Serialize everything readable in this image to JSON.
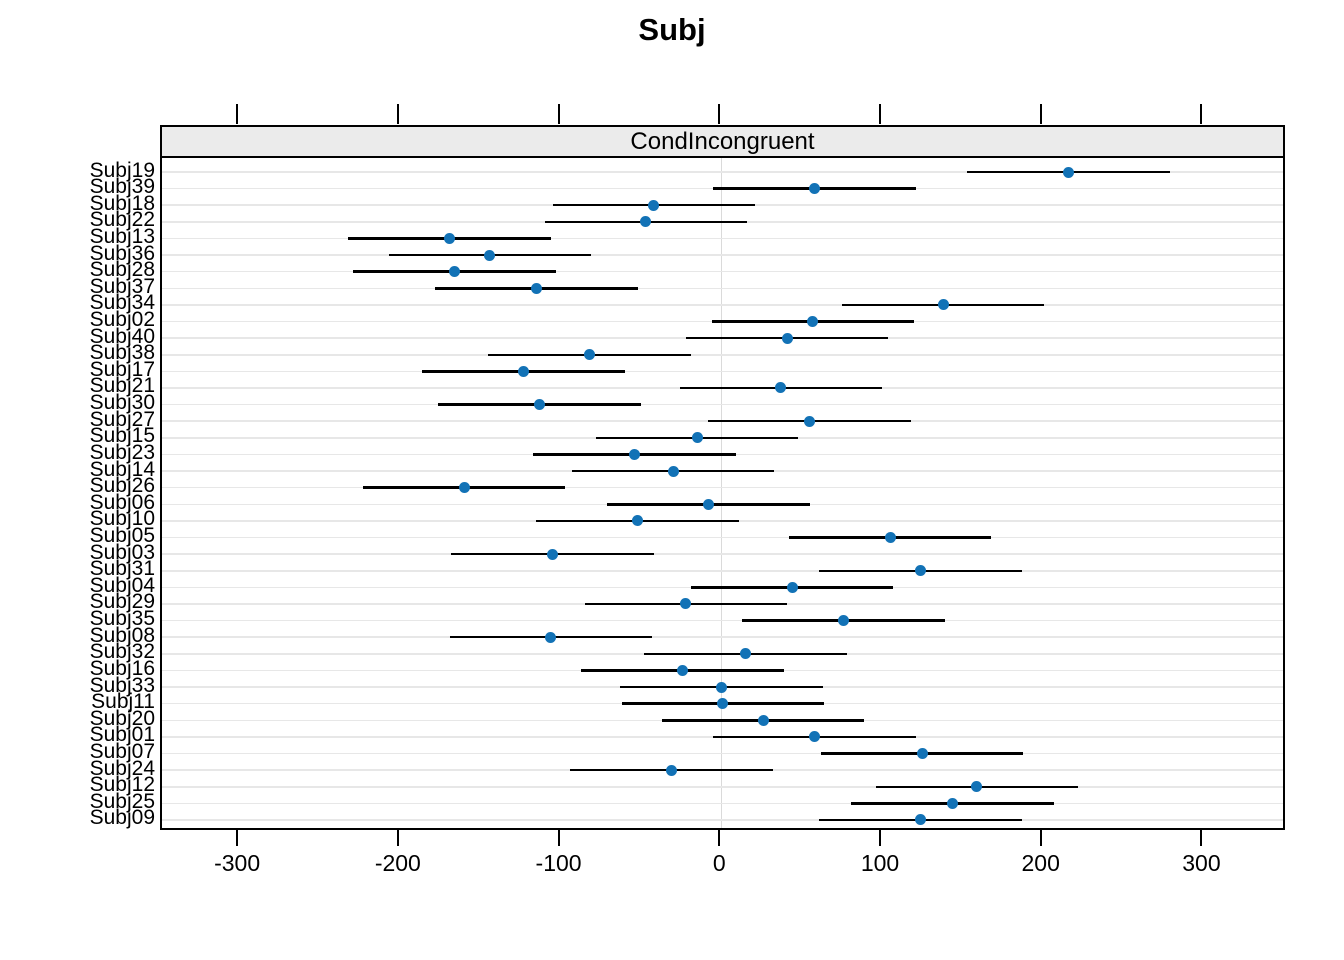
{
  "title": "Subj",
  "panel": {
    "strip_label": "CondIncongruent"
  },
  "colors": {
    "point": "#1272b6",
    "interval_line": "#000000",
    "strip_background": "#ebebeb",
    "horizontal_gridline": "#e7e7e7",
    "zero_gridline": "#dadada",
    "panel_border": "#000000"
  },
  "chart_data": {
    "type": "scatter",
    "subtype": "dotplot-with-intervals (caterpillar plot of conditional modes)",
    "title": "Subj",
    "panel_label": "CondIncongruent",
    "xlabel": "",
    "ylabel": "",
    "xlim": [
      -348,
      352
    ],
    "x_ticks": [
      -300,
      -200,
      -100,
      0,
      100,
      200,
      300
    ],
    "grid": {
      "horizontal_per_row": true,
      "vertical_at_zero": true
    },
    "legend_position": "none",
    "rows": [
      {
        "label": "Subj19",
        "est": 216,
        "lo": 153,
        "hi": 279
      },
      {
        "label": "Subj39",
        "est": 58,
        "lo": -5,
        "hi": 121
      },
      {
        "label": "Subj18",
        "est": -42,
        "lo": -105,
        "hi": 21
      },
      {
        "label": "Subj22",
        "est": -47,
        "lo": -110,
        "hi": 16
      },
      {
        "label": "Subj13",
        "est": -169,
        "lo": -232,
        "hi": -106
      },
      {
        "label": "Subj36",
        "est": -144,
        "lo": -207,
        "hi": -81
      },
      {
        "label": "Subj28",
        "est": -166,
        "lo": -229,
        "hi": -103
      },
      {
        "label": "Subj37",
        "est": -115,
        "lo": -178,
        "hi": -52
      },
      {
        "label": "Subj34",
        "est": 138,
        "lo": 75,
        "hi": 201
      },
      {
        "label": "Subj02",
        "est": 57,
        "lo": -6,
        "hi": 120
      },
      {
        "label": "Subj40",
        "est": 41,
        "lo": -22,
        "hi": 104
      },
      {
        "label": "Subj38",
        "est": -82,
        "lo": -145,
        "hi": -19
      },
      {
        "label": "Subj17",
        "est": -123,
        "lo": -186,
        "hi": -60
      },
      {
        "label": "Subj21",
        "est": 37,
        "lo": -26,
        "hi": 100
      },
      {
        "label": "Subj30",
        "est": -113,
        "lo": -176,
        "hi": -50
      },
      {
        "label": "Subj27",
        "est": 55,
        "lo": -8,
        "hi": 118
      },
      {
        "label": "Subj15",
        "est": -15,
        "lo": -78,
        "hi": 48
      },
      {
        "label": "Subj23",
        "est": -54,
        "lo": -117,
        "hi": 9
      },
      {
        "label": "Subj14",
        "est": -30,
        "lo": -93,
        "hi": 33
      },
      {
        "label": "Subj26",
        "est": -160,
        "lo": -223,
        "hi": -97
      },
      {
        "label": "Subj06",
        "est": -8,
        "lo": -71,
        "hi": 55
      },
      {
        "label": "Subj10",
        "est": -52,
        "lo": -115,
        "hi": 11
      },
      {
        "label": "Subj05",
        "est": 105,
        "lo": 42,
        "hi": 168
      },
      {
        "label": "Subj03",
        "est": -105,
        "lo": -168,
        "hi": -42
      },
      {
        "label": "Subj31",
        "est": 124,
        "lo": 61,
        "hi": 187
      },
      {
        "label": "Subj04",
        "est": 44,
        "lo": -19,
        "hi": 107
      },
      {
        "label": "Subj29",
        "est": -22,
        "lo": -85,
        "hi": 41
      },
      {
        "label": "Subj35",
        "est": 76,
        "lo": 13,
        "hi": 139
      },
      {
        "label": "Subj08",
        "est": -106,
        "lo": -169,
        "hi": -43
      },
      {
        "label": "Subj32",
        "est": 15,
        "lo": -48,
        "hi": 78
      },
      {
        "label": "Subj16",
        "est": -24,
        "lo": -87,
        "hi": 39
      },
      {
        "label": "Subj33",
        "est": 0,
        "lo": -63,
        "hi": 63
      },
      {
        "label": "Subj11",
        "est": 1,
        "lo": -62,
        "hi": 64
      },
      {
        "label": "Subj20",
        "est": 26,
        "lo": -37,
        "hi": 89
      },
      {
        "label": "Subj01",
        "est": 58,
        "lo": -5,
        "hi": 121
      },
      {
        "label": "Subj07",
        "est": 125,
        "lo": 62,
        "hi": 188
      },
      {
        "label": "Subj24",
        "est": -31,
        "lo": -94,
        "hi": 32
      },
      {
        "label": "Subj12",
        "est": 159,
        "lo": 96,
        "hi": 222
      },
      {
        "label": "Subj25",
        "est": 144,
        "lo": 81,
        "hi": 207
      },
      {
        "label": "Subj09",
        "est": 124,
        "lo": 61,
        "hi": 187
      }
    ]
  }
}
